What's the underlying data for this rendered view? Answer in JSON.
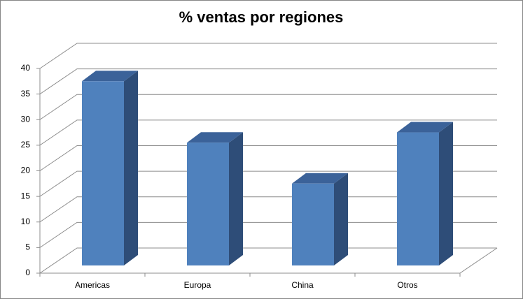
{
  "chart_data": {
    "type": "bar3d",
    "title": "% ventas por regiones",
    "categories": [
      "Americas",
      "Europa",
      "China",
      "Otros"
    ],
    "values": [
      36,
      24,
      16,
      26
    ],
    "colors": {
      "front": "#4f81bd",
      "side": "#2e4d78",
      "top": "#3b6299"
    },
    "ylim": [
      0,
      40
    ],
    "yticks": [
      0,
      5,
      10,
      15,
      20,
      25,
      30,
      35,
      40
    ],
    "grid": true
  }
}
